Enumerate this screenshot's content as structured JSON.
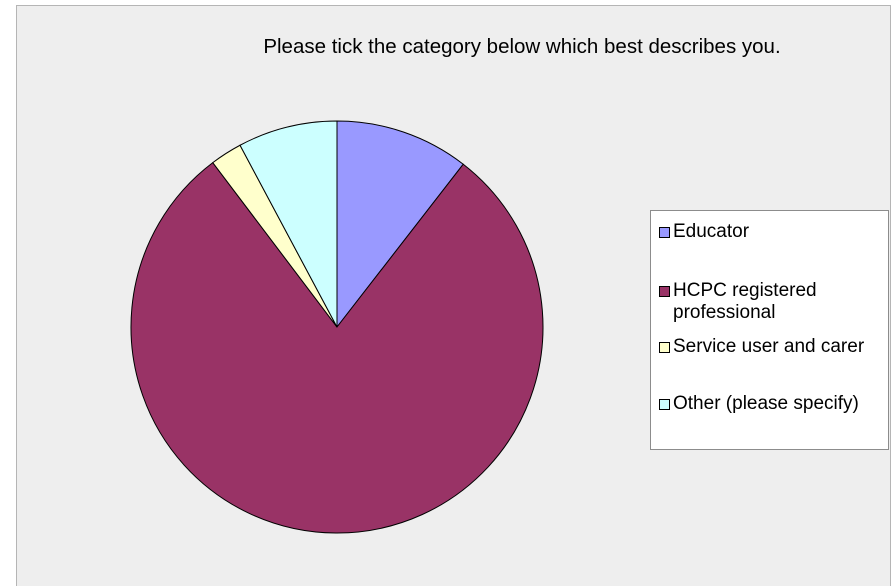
{
  "chart_data": {
    "type": "pie",
    "title": "Please tick the category below which best describes you.",
    "slices": [
      {
        "label": "Educator",
        "value": 10.5,
        "color": "#9999ff"
      },
      {
        "label": "HCPC registered professional",
        "value": 79.2,
        "color": "#993366"
      },
      {
        "label": "Service user and carer",
        "value": 2.5,
        "color": "#ffffcc"
      },
      {
        "label": "Other (please specify)",
        "value": 7.8,
        "color": "#ccffff"
      }
    ],
    "legend_position": "right"
  }
}
